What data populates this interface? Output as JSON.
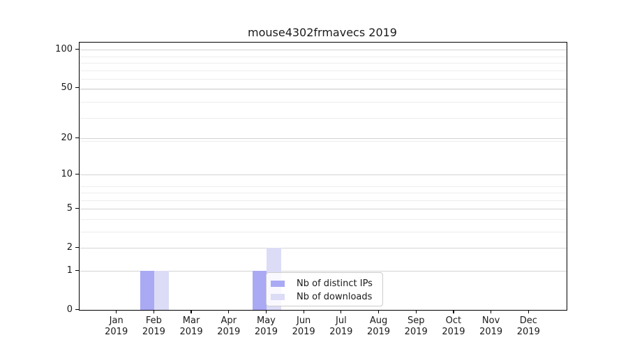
{
  "figure": {
    "title": "mouse4302frmavecs 2019"
  },
  "chart_data": {
    "type": "bar",
    "title": "mouse4302frmavecs 2019",
    "categories": [
      "Jan",
      "Feb",
      "Mar",
      "Apr",
      "May",
      "Jun",
      "Jul",
      "Aug",
      "Sep",
      "Oct",
      "Nov",
      "Dec"
    ],
    "category_year": "2019",
    "series": [
      {
        "name": "Nb of distinct IPs",
        "color": "#a9a9f4",
        "values": [
          0,
          1,
          0,
          0,
          1,
          0,
          0,
          0,
          0,
          0,
          0,
          0
        ]
      },
      {
        "name": "Nb of downloads",
        "color": "#dcdcf7",
        "values": [
          0,
          1,
          0,
          0,
          2,
          0,
          0,
          0,
          0,
          0,
          0,
          0
        ]
      }
    ],
    "y_axis": {
      "scale": "log10(1+value)",
      "tick_values": [
        0,
        1,
        2,
        5,
        10,
        20,
        50,
        100
      ],
      "top_value": 116
    },
    "grid": {
      "major_color": "#d4d4d4",
      "minor_color": "#ededed",
      "minor_mantissas": [
        2,
        3,
        4,
        5,
        6,
        7,
        8,
        9
      ]
    },
    "legend_position": "lower center"
  }
}
